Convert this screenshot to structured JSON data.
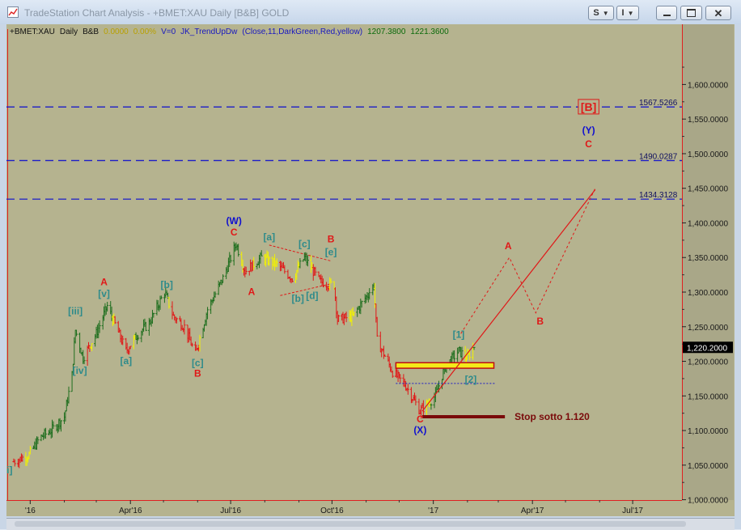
{
  "window": {
    "title": "TradeStation Chart Analysis - +BMET:XAU Daily [B&B] GOLD",
    "buttons": {
      "style_label": "S",
      "info_label": "I"
    }
  },
  "chart_data": {
    "type": "ohlc-bar",
    "header": {
      "symbol": "+BMET:XAU",
      "interval": "Daily",
      "session": "B&B",
      "change": "0.0000",
      "change_pct": "0.00%",
      "volume": "V=0",
      "indicator": "JK_TrendUpDw",
      "indicator_params": "(Close,11,DarkGreen,Red,yellow)",
      "value1": "1207.3800",
      "value2": "1221.3600"
    },
    "colors": {
      "background": "#b5b38f",
      "up": "#1e6e1e",
      "down": "#e01818",
      "neutral": "#f2f200",
      "wave_major": "#1010d0",
      "wave_minor": "#2e8b8b",
      "wave_abc": "#e01818"
    },
    "y_axis": {
      "range": [
        960,
        1650
      ],
      "ticks": [
        "1,600.0000",
        "1,550.0000",
        "1,500.0000",
        "1,450.0000",
        "1,400.0000",
        "1,350.0000",
        "1,300.0000",
        "1,250.0000",
        "1,200.0000",
        "1,150.0000",
        "1,100.0000",
        "1,050.0000",
        "1,000.0000"
      ],
      "last_price": "1,220.2000"
    },
    "x_axis": {
      "ticks": [
        "'16",
        "Apr'16",
        "Jul'16",
        "Oct'16",
        "'17",
        "Apr'17",
        "Jul'17"
      ]
    },
    "price_path": [
      [
        "2015-12-17",
        1055
      ],
      [
        "2015-12-31",
        1065
      ],
      [
        "2016-01-10",
        1090
      ],
      [
        "2016-01-20",
        1100
      ],
      [
        "2016-02-01",
        1120
      ],
      [
        "2016-02-08",
        1180
      ],
      [
        "2016-02-11",
        1245
      ],
      [
        "2016-02-18",
        1205
      ],
      [
        "2016-03-01",
        1240
      ],
      [
        "2016-03-11",
        1280
      ],
      [
        "2016-03-28",
        1215
      ],
      [
        "2016-04-08",
        1240
      ],
      [
        "2016-04-18",
        1255
      ],
      [
        "2016-05-02",
        1300
      ],
      [
        "2016-05-10",
        1265
      ],
      [
        "2016-05-20",
        1250
      ],
      [
        "2016-05-30",
        1210
      ],
      [
        "2016-06-10",
        1275
      ],
      [
        "2016-06-24",
        1320
      ],
      [
        "2016-07-06",
        1370
      ],
      [
        "2016-07-14",
        1330
      ],
      [
        "2016-07-29",
        1350
      ],
      [
        "2016-08-12",
        1340
      ],
      [
        "2016-08-26",
        1320
      ],
      [
        "2016-09-06",
        1350
      ],
      [
        "2016-09-20",
        1315
      ],
      [
        "2016-10-03",
        1310
      ],
      [
        "2016-10-06",
        1260
      ],
      [
        "2016-10-20",
        1265
      ],
      [
        "2016-11-08",
        1310
      ],
      [
        "2016-11-11",
        1230
      ],
      [
        "2016-11-25",
        1185
      ],
      [
        "2016-12-07",
        1165
      ],
      [
        "2016-12-20",
        1128
      ],
      [
        "2017-01-03",
        1150
      ],
      [
        "2017-01-11",
        1190
      ],
      [
        "2017-01-24",
        1215
      ],
      [
        "2017-02-01",
        1205
      ],
      [
        "2017-02-07",
        1222
      ]
    ],
    "levels": [
      {
        "value": 1567.5266,
        "label": "1567.5266"
      },
      {
        "value": 1490.0287,
        "label": "1490.0287"
      },
      {
        "value": 1434.3128,
        "label": "1434.3128"
      }
    ],
    "stop_line": {
      "value": 1120,
      "from": "2016-12-22",
      "to": "2017-03-07",
      "label": "Stop sotto 1.120"
    },
    "zone": {
      "from": 1190,
      "to": 1198,
      "start": "2016-11-28",
      "end": "2017-02-25"
    },
    "dotted_support": {
      "value": 1168,
      "start": "2016-11-28",
      "end": "2017-02-27"
    },
    "projection_dashed": [
      [
        "2017-01-26",
        1240
      ],
      [
        "2017-03-11",
        1350
      ],
      [
        "2017-04-04",
        1270
      ],
      [
        "2017-05-28",
        1450
      ]
    ],
    "trend_line": [
      [
        "2016-12-22",
        1128
      ],
      [
        "2017-05-28",
        1448
      ]
    ],
    "triangle_lines": [
      [
        [
          "2016-08-05",
          1368
        ],
        [
          "2016-09-30",
          1345
        ]
      ],
      [
        [
          "2016-08-15",
          1295
        ],
        [
          "2016-09-30",
          1312
        ]
      ]
    ],
    "annotations": [
      {
        "text": "[B]",
        "date": "2017-05-22",
        "price": 1562,
        "color": "#e01818",
        "style": "boxed"
      },
      {
        "text": "(Y)",
        "date": "2017-05-22",
        "price": 1529,
        "color": "#1010d0"
      },
      {
        "text": "C",
        "date": "2017-05-22",
        "price": 1509,
        "color": "#e01818"
      },
      {
        "text": "(W)",
        "date": "2016-07-04",
        "price": 1398,
        "color": "#1010d0"
      },
      {
        "text": "C",
        "date": "2016-07-04",
        "price": 1382,
        "color": "#e01818"
      },
      {
        "text": "A",
        "date": "2016-03-08",
        "price": 1310,
        "color": "#e01818"
      },
      {
        "text": "[v]",
        "date": "2016-03-08",
        "price": 1293,
        "color": "#2e8b8b"
      },
      {
        "text": "[iii]",
        "date": "2016-02-11",
        "price": 1268,
        "color": "#2e8b8b"
      },
      {
        "text": "[iv]",
        "date": "2016-02-15",
        "price": 1182,
        "color": "#2e8b8b"
      },
      {
        "text": "[a]",
        "date": "2016-03-28",
        "price": 1196,
        "color": "#2e8b8b"
      },
      {
        "text": "[b]",
        "date": "2016-05-04",
        "price": 1306,
        "color": "#2e8b8b"
      },
      {
        "text": "[c]",
        "date": "2016-06-01",
        "price": 1193,
        "color": "#2e8b8b"
      },
      {
        "text": "B",
        "date": "2016-06-01",
        "price": 1178,
        "color": "#e01818"
      },
      {
        "text": "[a]",
        "date": "2016-08-05",
        "price": 1375,
        "color": "#2e8b8b"
      },
      {
        "text": "[c]",
        "date": "2016-09-06",
        "price": 1365,
        "color": "#2e8b8b"
      },
      {
        "text": "B",
        "date": "2016-09-30",
        "price": 1372,
        "color": "#e01818"
      },
      {
        "text": "[e]",
        "date": "2016-09-30",
        "price": 1353,
        "color": "#2e8b8b"
      },
      {
        "text": "A",
        "date": "2016-07-20",
        "price": 1296,
        "color": "#e01818"
      },
      {
        "text": "[b]",
        "date": "2016-08-31",
        "price": 1286,
        "color": "#2e8b8b"
      },
      {
        "text": "[d]",
        "date": "2016-09-13",
        "price": 1290,
        "color": "#2e8b8b"
      },
      {
        "text": "A",
        "date": "2017-03-10",
        "price": 1362,
        "color": "#e01818"
      },
      {
        "text": "B",
        "date": "2017-04-08",
        "price": 1253,
        "color": "#e01818"
      },
      {
        "text": "[1]",
        "date": "2017-01-24",
        "price": 1234,
        "color": "#2e8b8b"
      },
      {
        "text": "[2]",
        "date": "2017-02-04",
        "price": 1169,
        "color": "#2e8b8b"
      },
      {
        "text": "C",
        "date": "2016-12-20",
        "price": 1112,
        "color": "#e01818"
      },
      {
        "text": "(X)",
        "date": "2016-12-20",
        "price": 1096,
        "color": "#1010d0"
      },
      {
        "text": "ii]",
        "date": "2015-12-12",
        "price": 1038,
        "color": "#2e8b8b"
      }
    ]
  }
}
